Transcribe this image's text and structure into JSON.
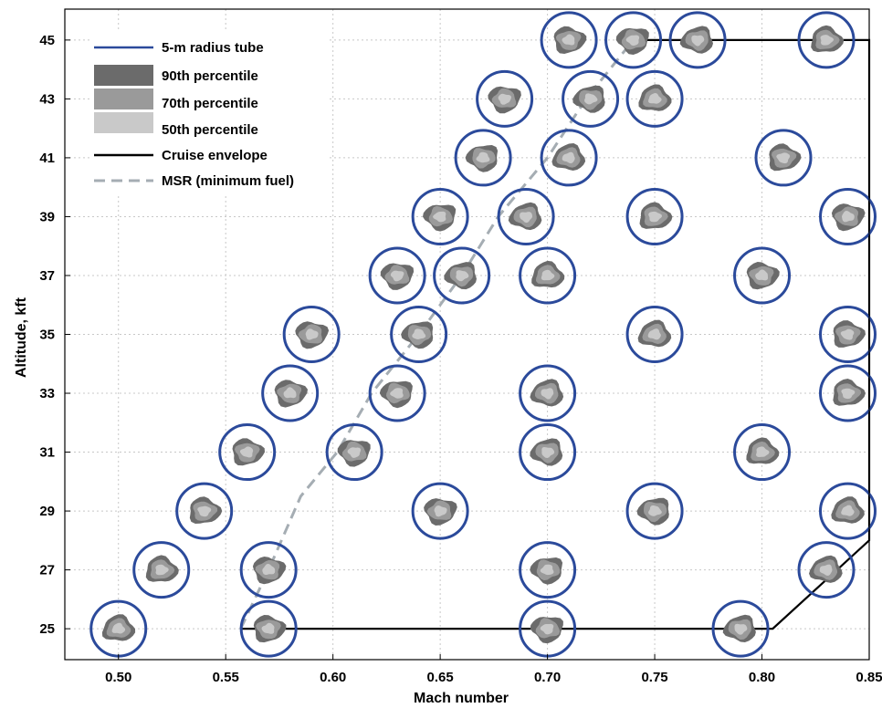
{
  "chart_data": {
    "type": "scatter",
    "xlabel": "Mach number",
    "ylabel": "Altitude, kft",
    "xlim": [
      0.475,
      0.85
    ],
    "ylim": [
      23.95,
      46.05
    ],
    "xticks": [
      "0.50",
      "0.55",
      "0.60",
      "0.65",
      "0.70",
      "0.75",
      "0.80",
      "0.85"
    ],
    "yticks": [
      "25",
      "27",
      "29",
      "31",
      "33",
      "35",
      "37",
      "39",
      "41",
      "43",
      "45"
    ],
    "grid": true,
    "legend_position": "top-left",
    "legend": [
      {
        "label": "5-m radius tube",
        "kind": "line",
        "color": "#2b4a9b"
      },
      {
        "label": "90th percentile",
        "kind": "patch",
        "color": "#6b6b6b"
      },
      {
        "label": "70th percentile",
        "kind": "patch",
        "color": "#9a9a9a"
      },
      {
        "label": "50th percentile",
        "kind": "patch",
        "color": "#c9c9c9"
      },
      {
        "label": "Cruise envelope",
        "kind": "line",
        "color": "#000000"
      },
      {
        "label": "MSR (minimum fuel)",
        "kind": "dashed",
        "color": "#a5adb3"
      }
    ],
    "colors": {
      "tube": "#2b4a9b",
      "p90": "#6b6b6b",
      "p70": "#9a9a9a",
      "p50": "#c9c9c9",
      "envelope": "#000000",
      "msr": "#a5adb3",
      "grid": "#c8c8c8"
    },
    "series": [
      {
        "name": "5-m radius tube",
        "kind": "points",
        "points": [
          [
            0.5,
            25
          ],
          [
            0.57,
            25
          ],
          [
            0.7,
            25
          ],
          [
            0.79,
            25
          ],
          [
            0.52,
            27
          ],
          [
            0.57,
            27
          ],
          [
            0.7,
            27
          ],
          [
            0.83,
            27
          ],
          [
            0.54,
            29
          ],
          [
            0.65,
            29
          ],
          [
            0.75,
            29
          ],
          [
            0.84,
            29
          ],
          [
            0.56,
            31
          ],
          [
            0.61,
            31
          ],
          [
            0.7,
            31
          ],
          [
            0.8,
            31
          ],
          [
            0.58,
            33
          ],
          [
            0.63,
            33
          ],
          [
            0.7,
            33
          ],
          [
            0.84,
            33
          ],
          [
            0.59,
            35
          ],
          [
            0.64,
            35
          ],
          [
            0.75,
            35
          ],
          [
            0.84,
            35
          ],
          [
            0.63,
            37
          ],
          [
            0.66,
            37
          ],
          [
            0.7,
            37
          ],
          [
            0.8,
            37
          ],
          [
            0.65,
            39
          ],
          [
            0.69,
            39
          ],
          [
            0.75,
            39
          ],
          [
            0.84,
            39
          ],
          [
            0.67,
            41
          ],
          [
            0.71,
            41
          ],
          [
            0.81,
            41
          ],
          [
            0.68,
            43
          ],
          [
            0.72,
            43
          ],
          [
            0.75,
            43
          ],
          [
            0.71,
            45
          ],
          [
            0.74,
            45
          ],
          [
            0.77,
            45
          ],
          [
            0.83,
            45
          ]
        ]
      },
      {
        "name": "Cruise envelope",
        "kind": "line",
        "points": [
          [
            0.557,
            25
          ],
          [
            0.805,
            25
          ],
          [
            0.835,
            27
          ],
          [
            0.85,
            28
          ],
          [
            0.85,
            45
          ],
          [
            0.74,
            45
          ]
        ]
      },
      {
        "name": "MSR (minimum fuel)",
        "kind": "line",
        "points": [
          [
            0.557,
            25
          ],
          [
            0.57,
            27
          ],
          [
            0.585,
            29.5
          ],
          [
            0.602,
            31
          ],
          [
            0.618,
            33
          ],
          [
            0.64,
            35
          ],
          [
            0.66,
            37
          ],
          [
            0.677,
            39
          ],
          [
            0.7,
            41
          ],
          [
            0.718,
            43
          ],
          [
            0.74,
            45
          ]
        ]
      }
    ]
  }
}
